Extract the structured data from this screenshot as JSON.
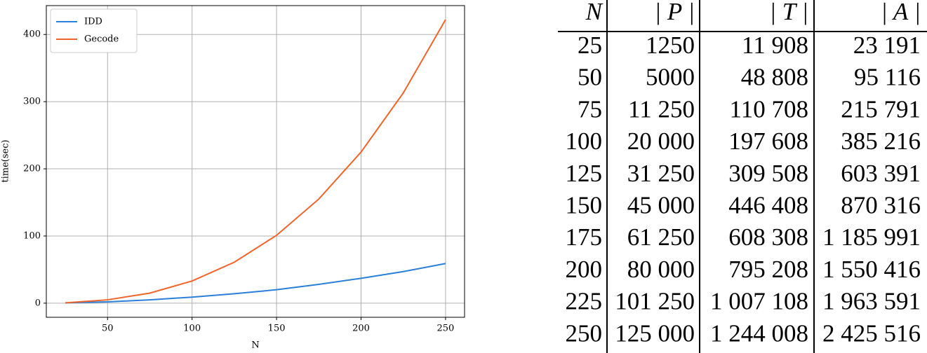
{
  "chart_data": {
    "type": "line",
    "xlabel": "N",
    "ylabel": "time(sec)",
    "x": [
      25,
      50,
      75,
      100,
      125,
      150,
      175,
      200,
      225,
      250
    ],
    "series": [
      {
        "name": "IDD",
        "color": "#2a7fd9",
        "values": [
          0.5,
          2,
          5,
          9,
          14,
          20,
          28,
          37,
          47,
          59
        ]
      },
      {
        "name": "Gecode",
        "color": "#f0642a",
        "values": [
          0.5,
          5,
          15,
          33,
          61,
          101,
          155,
          225,
          313,
          422
        ]
      }
    ],
    "xlim": [
      13.75,
      261.25
    ],
    "xticks": [
      50,
      100,
      150,
      200,
      250
    ],
    "ylim": [
      -21,
      443
    ],
    "yticks": [
      0,
      100,
      200,
      300,
      400
    ],
    "grid": true,
    "legend": "upper-left"
  },
  "table": {
    "header": [
      "N",
      "| P |",
      "| T |",
      "| A |"
    ],
    "rows": [
      [
        "25",
        "1250",
        "11 908",
        "23 191"
      ],
      [
        "50",
        "5000",
        "48 808",
        "95 116"
      ],
      [
        "75",
        "11 250",
        "110 708",
        "215 791"
      ],
      [
        "100",
        "20 000",
        "197 608",
        "385 216"
      ],
      [
        "125",
        "31 250",
        "309 508",
        "603 391"
      ],
      [
        "150",
        "45 000",
        "446 408",
        "870 316"
      ],
      [
        "175",
        "61 250",
        "608 308",
        "1 185 991"
      ],
      [
        "200",
        "80 000",
        "795 208",
        "1 550 416"
      ],
      [
        "225",
        "101 250",
        "1 007 108",
        "1 963 591"
      ],
      [
        "250",
        "125 000",
        "1 244 008",
        "2 425 516"
      ]
    ]
  }
}
